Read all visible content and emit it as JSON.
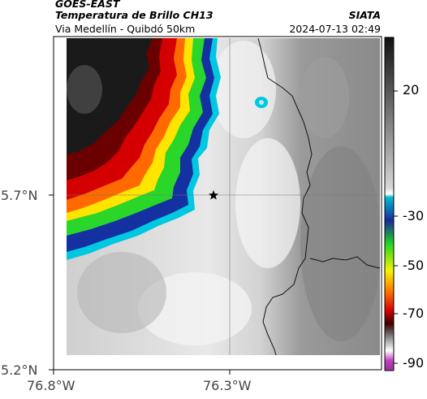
{
  "header": {
    "agency": "GOES-EAST",
    "product": "Temperatura de Brillo CH13",
    "region": "Via Medellín - Quibdó 50km",
    "org": "SIATA",
    "timestamp": "2024-07-13 02:49"
  },
  "axes": {
    "lat_ticks": [
      "5.7°N",
      "5.2°N"
    ],
    "lon_ticks": [
      "76.8°W",
      "76.3°W"
    ]
  },
  "colorbar": {
    "ticks": [
      "20",
      "-30",
      "-50",
      "-70",
      "-90"
    ],
    "colors": {
      "warm_top": "#111111",
      "gray_mid": "#bdbdbd",
      "cyan": "#00bcd4",
      "blue": "#1a2a9c",
      "green": "#1fd61f",
      "yellow": "#f5f500",
      "orange": "#ff7a00",
      "red": "#d80000",
      "dark_red": "#3a0000",
      "magenta": "#c040c0"
    }
  },
  "map": {
    "marker_icon": "star-icon",
    "cloud_colors": {
      "core": "#1a1a1a",
      "dark_red": "#6b0000",
      "red": "#d40000",
      "orange": "#ff6a00",
      "yellow": "#ffe400",
      "green": "#29d629",
      "blue": "#1530a0",
      "cyan": "#00c8e0"
    }
  }
}
